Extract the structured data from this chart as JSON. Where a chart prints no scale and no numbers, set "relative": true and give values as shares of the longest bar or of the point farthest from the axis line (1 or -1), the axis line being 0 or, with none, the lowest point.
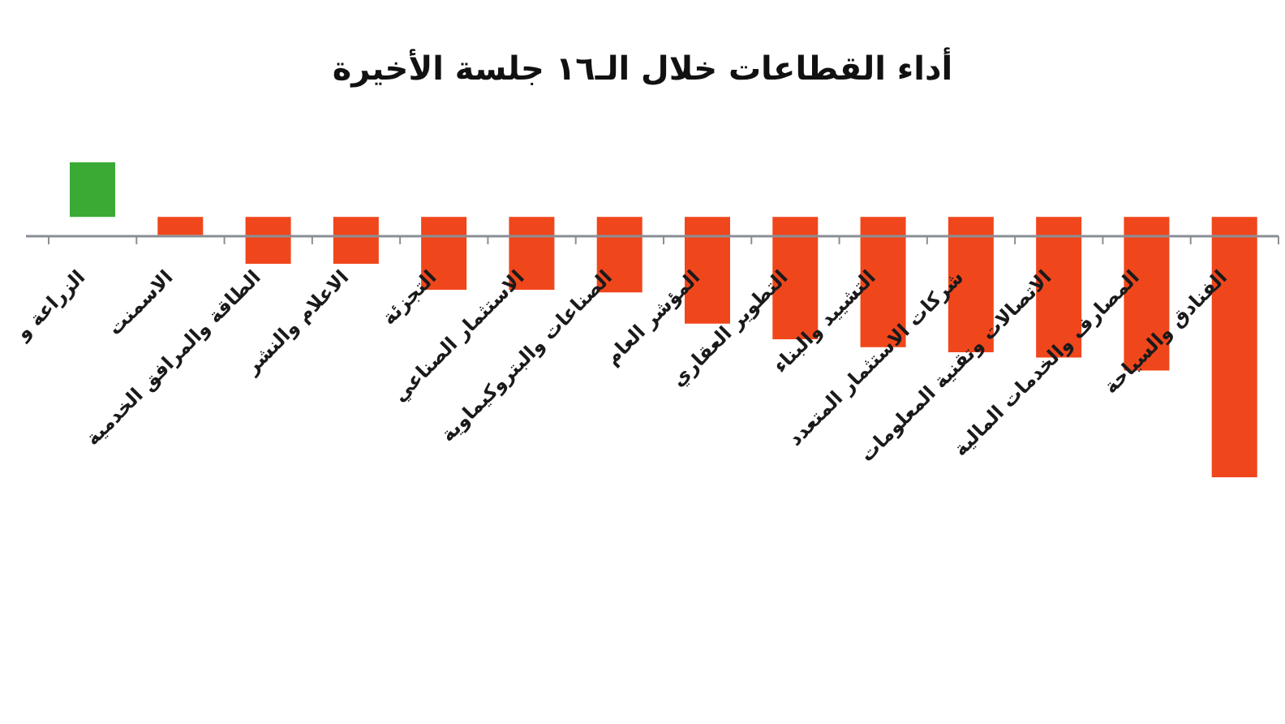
{
  "chart_data": {
    "type": "bar",
    "title": "أداء القطاعات خلال الـ١٦ جلسة الأخيرة",
    "categories": [
      "الزراعة و",
      "الاسمنت",
      "الطاقة والمرافق الخدمية",
      "الاعلام والنشر",
      "التجزئة",
      "الاستثمار الصناعي",
      "الصناعات والبتروكيماوية",
      "المؤشر العام",
      "التطوير العقاري",
      "التشييد والبناء",
      "شركات الاستثمار المتعدد",
      "الاتصالات وتقنية المعلومات",
      "المصارف والخدمات المالية",
      "الفنادق والسياحة"
    ],
    "values": [
      0.21,
      -0.07,
      -0.18,
      -0.18,
      -0.28,
      -0.28,
      -0.29,
      -0.41,
      -0.47,
      -0.5,
      -0.52,
      -0.54,
      -0.59,
      -1
    ],
    "colors": [
      "#3aaa35",
      "#f0461c",
      "#f0461c",
      "#f0461c",
      "#f0461c",
      "#f0461c",
      "#f0461c",
      "#f0461c",
      "#f0461c",
      "#f0461c",
      "#f0461c",
      "#f0461c",
      "#f0461c",
      "#f0461c"
    ],
    "relative": true
  }
}
